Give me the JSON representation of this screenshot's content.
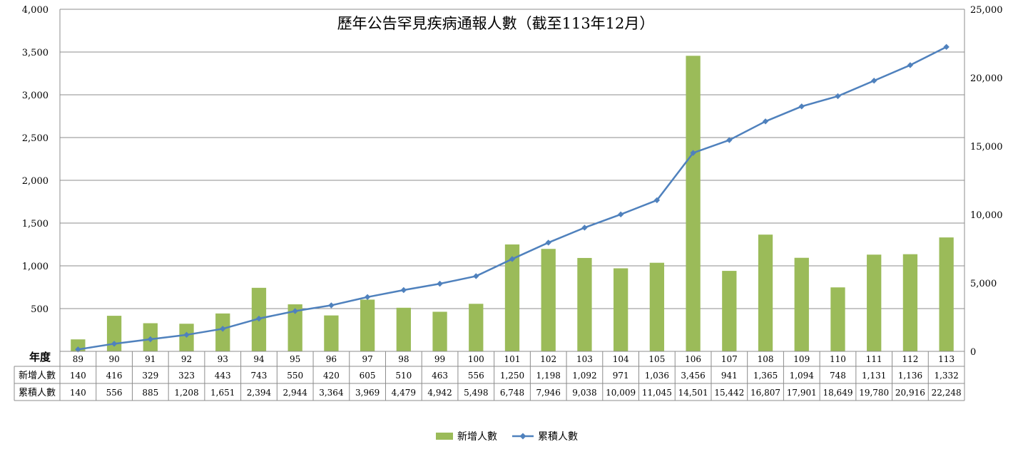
{
  "chart_data": {
    "type": "bar+line",
    "title": "歷年公告罕見疾病通報人數（截至113年12月）",
    "categories": [
      "89",
      "90",
      "91",
      "92",
      "93",
      "94",
      "95",
      "96",
      "97",
      "98",
      "99",
      "100",
      "101",
      "102",
      "103",
      "104",
      "105",
      "106",
      "107",
      "108",
      "109",
      "110",
      "111",
      "112",
      "113"
    ],
    "series": [
      {
        "name": "新增人數",
        "type": "bar",
        "axis": "left",
        "color": "#9BBB59",
        "values": [
          140,
          416,
          329,
          323,
          443,
          743,
          550,
          420,
          605,
          510,
          463,
          556,
          1250,
          1198,
          1092,
          971,
          1036,
          3456,
          941,
          1365,
          1094,
          748,
          1131,
          1136,
          1332
        ],
        "labels": [
          "140",
          "416",
          "329",
          "323",
          "443",
          "743",
          "550",
          "420",
          "605",
          "510",
          "463",
          "556",
          "1,250",
          "1,198",
          "1,092",
          "971",
          "1,036",
          "3,456",
          "941",
          "1,365",
          "1,094",
          "748",
          "1,131",
          "1,136",
          "1,332"
        ]
      },
      {
        "name": "累積人數",
        "type": "line",
        "axis": "right",
        "color": "#4F81BD",
        "values": [
          140,
          556,
          885,
          1208,
          1651,
          2394,
          2944,
          3364,
          3969,
          4479,
          4942,
          5498,
          6748,
          7946,
          9038,
          10009,
          11045,
          14501,
          15442,
          16807,
          17901,
          18649,
          19780,
          20916,
          22248
        ],
        "labels": [
          "140",
          "556",
          "885",
          "1,208",
          "1,651",
          "2,394",
          "2,944",
          "3,364",
          "3,969",
          "4,479",
          "4,942",
          "5,498",
          "6,748",
          "7,946",
          "9,038",
          "10,009",
          "11,045",
          "14,501",
          "15,442",
          "16,807",
          "17,901",
          "18,649",
          "19,780",
          "20,916",
          "22,248"
        ]
      }
    ],
    "y_left": {
      "min": 0,
      "max": 4000,
      "ticks": [
        0,
        500,
        1000,
        1500,
        2000,
        2500,
        3000,
        3500,
        4000
      ],
      "tick_labels": [
        "",
        "500",
        "1,000",
        "1,500",
        "2,000",
        "2,500",
        "3,000",
        "3,500",
        "4,000"
      ]
    },
    "y_right": {
      "min": 0,
      "max": 25000,
      "ticks": [
        0,
        5000,
        10000,
        15000,
        20000,
        25000
      ],
      "tick_labels": [
        "0",
        "5,000",
        "10,000",
        "15,000",
        "20,000",
        "25,000"
      ]
    },
    "grid": true,
    "legend_position": "bottom",
    "table": {
      "header_label": "年度",
      "row_labels": [
        "新增人數",
        "累積人數"
      ]
    }
  }
}
